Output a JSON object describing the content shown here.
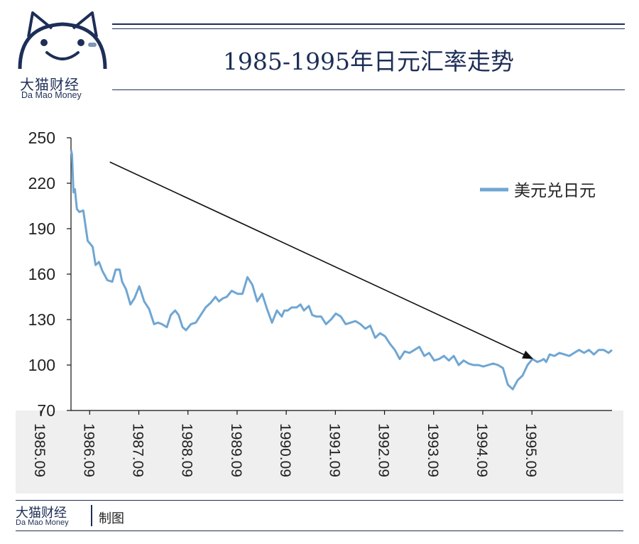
{
  "brand": {
    "name_cn": "大猫财经",
    "name_en": "Da Mao Money"
  },
  "header": {
    "title": "1985-1995年日元汇率走势"
  },
  "footer": {
    "brand_cn": "大猫财经",
    "brand_en": "Da Mao Money",
    "suffix": "制图"
  },
  "colors": {
    "navy": "#1d2e57",
    "series": "#6fa6d3",
    "band": "#efeff0"
  },
  "chart_data": {
    "type": "line",
    "title": "1985-1995年日元汇率走势",
    "xlabel": "",
    "ylabel": "",
    "ylim": [
      70,
      250
    ],
    "yticks": [
      250,
      220,
      190,
      160,
      130,
      100,
      70
    ],
    "xticks": [
      "1985.09",
      "1986.09",
      "1987.09",
      "1988.09",
      "1989.09",
      "1990.09",
      "1991.09",
      "1992.09",
      "1993.09",
      "1994.09",
      "1995.09"
    ],
    "legend": "right",
    "series": [
      {
        "name": "美元兑日元",
        "x": [
          1985.71,
          1985.73,
          1985.76,
          1985.79,
          1985.83,
          1985.88,
          1985.96,
          1986.05,
          1986.15,
          1986.21,
          1986.28,
          1986.35,
          1986.45,
          1986.55,
          1986.62,
          1986.7,
          1986.75,
          1986.83,
          1986.92,
          1987.0,
          1987.1,
          1987.2,
          1987.3,
          1987.4,
          1987.48,
          1987.56,
          1987.66,
          1987.74,
          1987.83,
          1987.9,
          1987.98,
          1988.05,
          1988.15,
          1988.25,
          1988.35,
          1988.45,
          1988.55,
          1988.65,
          1988.72,
          1988.8,
          1988.88,
          1988.98,
          1989.1,
          1989.2,
          1989.3,
          1989.4,
          1989.5,
          1989.6,
          1989.7,
          1989.8,
          1989.9,
          1990.0,
          1990.05,
          1990.12,
          1990.2,
          1990.3,
          1990.38,
          1990.45,
          1990.55,
          1990.62,
          1990.7,
          1990.8,
          1990.9,
          1991.0,
          1991.1,
          1991.2,
          1991.3,
          1991.4,
          1991.5,
          1991.6,
          1991.7,
          1991.8,
          1991.9,
          1992.0,
          1992.1,
          1992.2,
          1992.3,
          1992.4,
          1992.5,
          1992.6,
          1992.7,
          1992.8,
          1992.9,
          1993.0,
          1993.1,
          1993.2,
          1993.3,
          1993.4,
          1993.5,
          1993.6,
          1993.7,
          1993.8,
          1993.9,
          1994.0,
          1994.1,
          1994.2,
          1994.3,
          1994.4,
          1994.5,
          1994.6,
          1994.7,
          1994.8,
          1994.9,
          1995.0,
          1995.1,
          1995.2,
          1995.28,
          1995.33,
          1995.38,
          1995.45,
          1995.55,
          1995.65,
          1995.75,
          1995.85,
          1995.95,
          1996.05,
          1996.15,
          1996.25,
          1996.35,
          1996.45,
          1996.55,
          1996.65,
          1996.72
        ],
        "values": [
          242,
          239,
          214,
          216,
          203,
          201,
          202,
          182,
          178,
          166,
          168,
          162,
          156,
          155,
          163,
          163,
          155,
          150,
          140,
          144,
          152,
          142,
          137,
          127,
          128,
          127,
          125,
          133,
          136,
          133,
          125,
          123,
          127,
          128,
          133,
          138,
          141,
          145,
          142,
          144,
          145,
          149,
          147,
          147,
          158,
          153,
          142,
          147,
          137,
          128,
          136,
          132,
          136,
          136,
          138,
          138,
          140,
          136,
          139,
          133,
          132,
          132,
          127,
          130,
          134,
          132,
          127,
          128,
          129,
          127,
          124,
          126,
          118,
          121,
          119,
          114,
          110,
          104,
          109,
          108,
          110,
          112,
          106,
          108,
          103,
          104,
          106,
          103,
          106,
          100,
          103,
          101,
          100,
          100,
          99,
          100,
          101,
          100,
          98,
          87,
          84,
          90,
          93,
          100,
          104,
          102,
          103,
          104,
          102,
          107,
          106,
          108,
          107,
          106,
          108,
          110,
          108,
          110,
          107,
          110,
          110,
          108,
          110
        ]
      }
    ],
    "annotations": [
      {
        "type": "arrow",
        "from": [
          1986.5,
          234
        ],
        "to": [
          1995.12,
          104
        ]
      }
    ]
  }
}
